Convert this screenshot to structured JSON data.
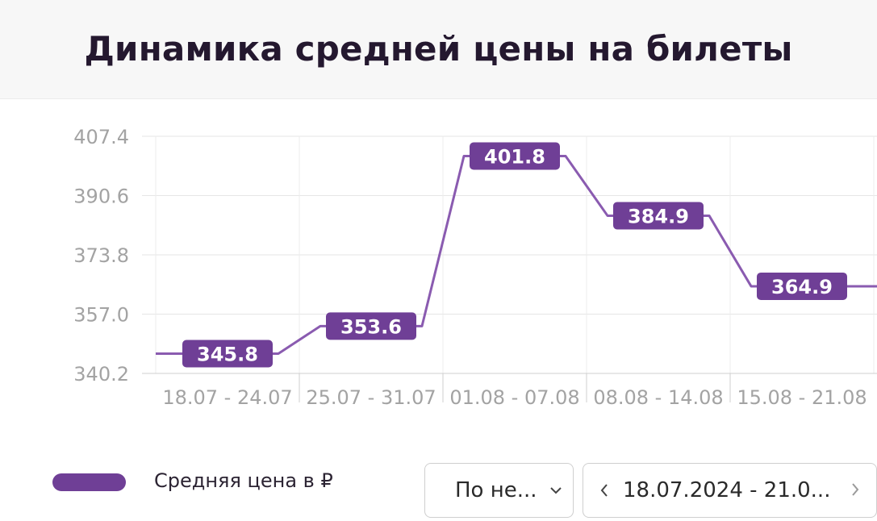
{
  "title": "Динамика средней цены на билеты",
  "chart_data": {
    "type": "line",
    "step": true,
    "categories": [
      "18.07 - 24.07",
      "25.07 - 31.07",
      "01.08 - 07.08",
      "08.08 - 14.08",
      "15.08 - 21.08"
    ],
    "series": [
      {
        "name": "Средняя цена в ₽",
        "values": [
          345.8,
          353.6,
          401.8,
          384.9,
          364.9
        ],
        "color": "#6f3f96"
      }
    ],
    "y_ticks": [
      "407.4",
      "390.6",
      "373.8",
      "357.0",
      "340.2"
    ],
    "ylim": [
      340.2,
      407.4
    ],
    "grid": true,
    "data_labels": true
  },
  "legend": {
    "label": "Средняя цена в ₽",
    "color": "#6f3f96"
  },
  "controls": {
    "period_select": {
      "value": "По не...",
      "icon": "chevron-down-icon"
    },
    "date_range": {
      "value": "18.07.2024 - 21.0...",
      "prev_icon": "chevron-left-icon",
      "next_icon": "chevron-right-icon"
    }
  }
}
